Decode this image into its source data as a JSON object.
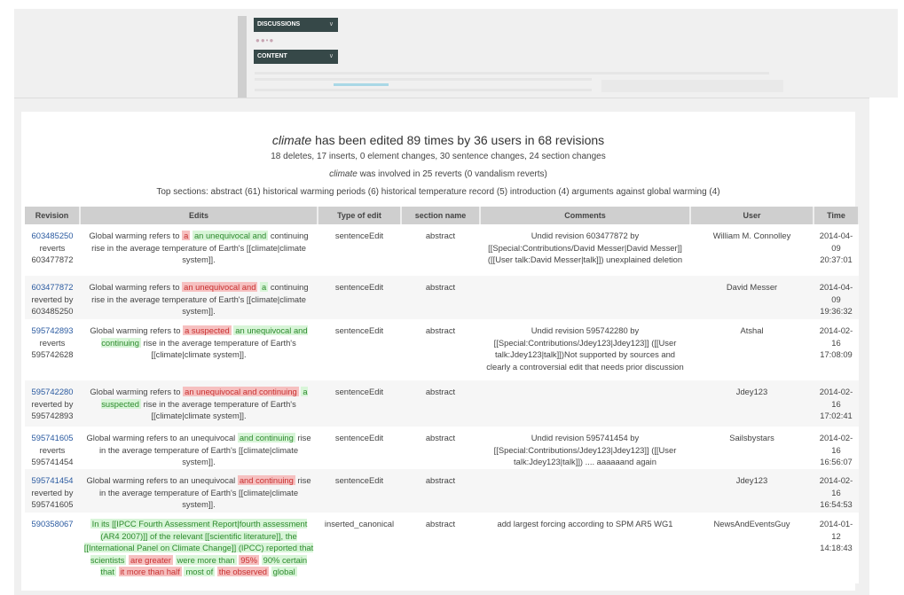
{
  "nav": {
    "discussions": "DISCUSSIONS",
    "content": "CONTENT",
    "chevron": "chevron-down-icon"
  },
  "summary": {
    "title_article": "climate",
    "title_rest": " has been edited 89 times by 36 users in 68 revisions",
    "counts": "18 deletes, 17 inserts, 0 element changes, 30 sentence changes, 24 section changes",
    "reverts_article": "climate",
    "reverts_rest": " was involved in 25 reverts (0 vandalism reverts)",
    "top_sections": "Top sections: abstract (61) historical warming periods (6) historical temperature record (5) introduction (4) arguments against global warming (4)"
  },
  "colors": {
    "insert": "#d8f5d8",
    "delete": "#f6c0c0",
    "link": "#2a5aa0"
  },
  "table": {
    "headers": [
      "Revision",
      "Edits",
      "Type of edit",
      "section name",
      "Comments",
      "User",
      "Time"
    ],
    "rows": [
      {
        "rev": "603485250",
        "rel": "reverts",
        "other": "603477872",
        "edits": [
          {
            "t": "Global warming refers to "
          },
          {
            "t": "a",
            "k": "del"
          },
          {
            "t": " "
          },
          {
            "t": "an unequivocal and",
            "k": "ins"
          },
          {
            "t": " continuing rise in the average temperature of Earth's [[climate|climate system]]."
          }
        ],
        "type": "sentenceEdit",
        "section": "abstract",
        "comment": "Undid revision 603477872 by [[Special:Contributions/David Messer|David Messer]] ([[User talk:David Messer|talk]]) unexplained deletion",
        "user": "William M. Connolley",
        "time": "2014-04-09 20:37:01"
      },
      {
        "rev": "603477872",
        "rel": "reverted by",
        "other": "603485250",
        "edits": [
          {
            "t": "Global warming refers to "
          },
          {
            "t": "an unequivocal and",
            "k": "del"
          },
          {
            "t": " "
          },
          {
            "t": "a",
            "k": "ins"
          },
          {
            "t": " continuing rise in the average temperature of Earth's [[climate|climate system]]."
          }
        ],
        "type": "sentenceEdit",
        "section": "abstract",
        "comment": "",
        "user": "David Messer",
        "time": "2014-04-09 19:36:32"
      },
      {
        "rev": "595742893",
        "rel": "reverts",
        "other": "595742628",
        "edits": [
          {
            "t": "Global warming refers to "
          },
          {
            "t": "a suspected",
            "k": "del"
          },
          {
            "t": " "
          },
          {
            "t": "an unequivocal and continuing",
            "k": "ins"
          },
          {
            "t": " rise in the average temperature of Earth's [[climate|climate system]]."
          }
        ],
        "type": "sentenceEdit",
        "section": "abstract",
        "comment": "Undid revision 595742280 by [[Special:Contributions/Jdey123|Jdey123]] ([[User talk:Jdey123|talk]])Not supported by sources and clearly a controversial edit that needs prior discussion",
        "user": "Atshal",
        "time": "2014-02-16 17:08:09"
      },
      {
        "rev": "595742280",
        "rel": "reverted by",
        "other": "595742893",
        "edits": [
          {
            "t": "Global warming refers to "
          },
          {
            "t": "an unequivocal and continuing",
            "k": "del"
          },
          {
            "t": " "
          },
          {
            "t": "a suspected",
            "k": "ins"
          },
          {
            "t": " rise in the average temperature of Earth's [[climate|climate system]]."
          }
        ],
        "type": "sentenceEdit",
        "section": "abstract",
        "comment": "",
        "user": "Jdey123",
        "time": "2014-02-16 17:02:41"
      },
      {
        "rev": "595741605",
        "rel": "reverts",
        "other": "595741454",
        "edits": [
          {
            "t": "Global warming refers to an unequivocal "
          },
          {
            "t": "and continuing",
            "k": "ins"
          },
          {
            "t": " rise in the average temperature of Earth's [[climate|climate system]]."
          }
        ],
        "type": "sentenceEdit",
        "section": "abstract",
        "comment": "Undid revision 595741454 by [[Special:Contributions/Jdey123|Jdey123]] ([[User talk:Jdey123|talk]]) .... aaaaaand again",
        "user": "Sailsbystars",
        "time": "2014-02-16 16:56:07"
      },
      {
        "rev": "595741454",
        "rel": "reverted by",
        "other": "595741605",
        "edits": [
          {
            "t": "Global warming refers to an unequivocal "
          },
          {
            "t": "and continuing",
            "k": "del"
          },
          {
            "t": " rise in the average temperature of Earth's [[climate|climate system]]."
          }
        ],
        "type": "sentenceEdit",
        "section": "abstract",
        "comment": "",
        "user": "Jdey123",
        "time": "2014-02-16 16:54:53"
      },
      {
        "rev": "590358067",
        "rel": "",
        "other": "",
        "edits": [
          {
            "t": "In its [[IPCC Fourth Assessment Report|fourth assessment (AR4 2007)]] of the relevant [[scientific literature]], the [[International Panel on Climate Change]] (IPCC) reported that scientists",
            "k": "ins"
          },
          {
            "t": " "
          },
          {
            "t": "are greater",
            "k": "del"
          },
          {
            "t": " "
          },
          {
            "t": "were more than",
            "k": "ins"
          },
          {
            "t": " "
          },
          {
            "t": "95%",
            "k": "del"
          },
          {
            "t": " "
          },
          {
            "t": "90% certain that",
            "k": "ins"
          },
          {
            "t": " "
          },
          {
            "t": "it more than half",
            "k": "del"
          },
          {
            "t": " "
          },
          {
            "t": "most of",
            "k": "ins"
          },
          {
            "t": " "
          },
          {
            "t": "the observed",
            "k": "del"
          },
          {
            "t": " "
          },
          {
            "t": "global",
            "k": "ins"
          }
        ],
        "type": "inserted_canonical",
        "section": "abstract",
        "comment": "add largest forcing according to SPM AR5 WG1",
        "user": "NewsAndEventsGuy",
        "time": "2014-01-12 14:18:43"
      }
    ]
  }
}
